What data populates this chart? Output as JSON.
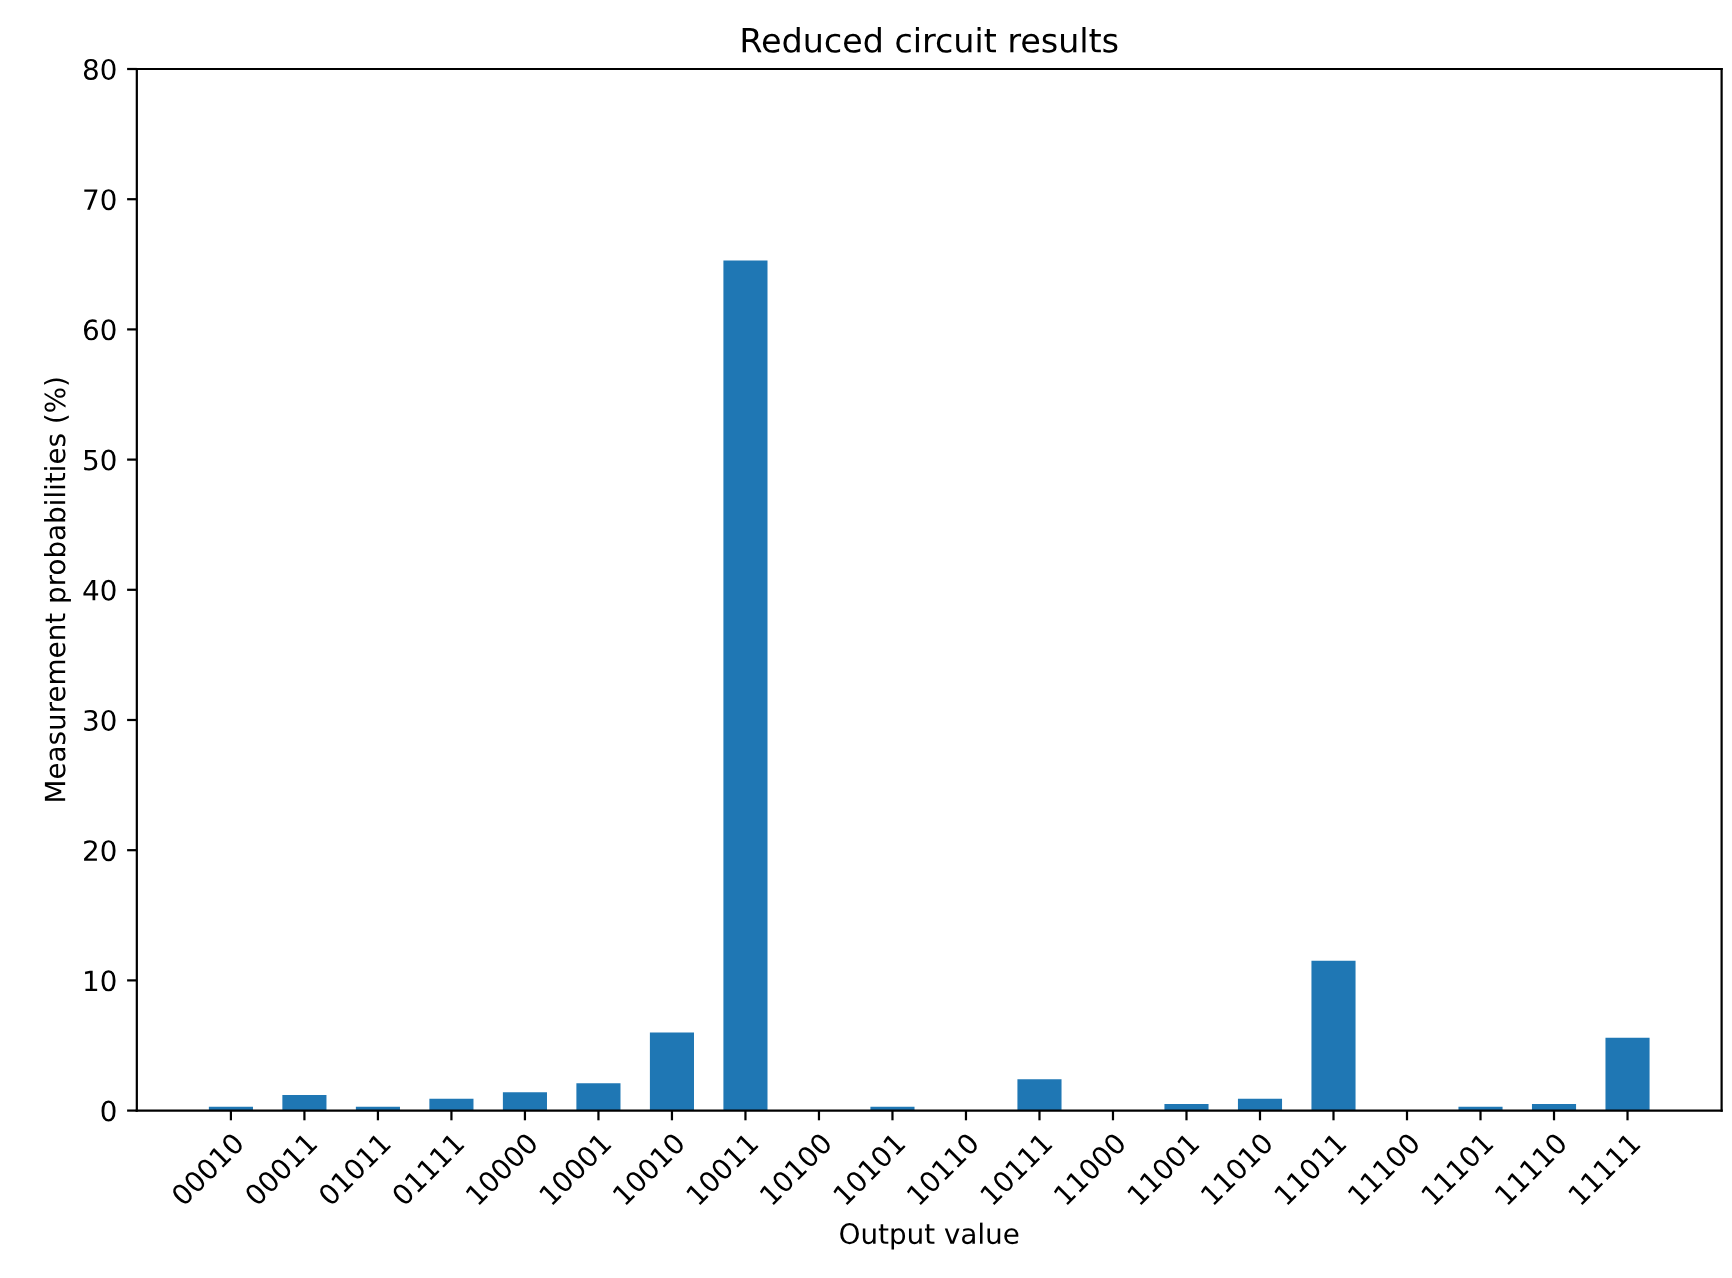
{
  "chart_data": {
    "type": "bar",
    "title": "Reduced circuit results",
    "xlabel": "Output value",
    "ylabel": "Measurement probabilities (%)",
    "categories": [
      "00010",
      "00011",
      "01011",
      "01111",
      "10000",
      "10001",
      "10010",
      "10011",
      "10100",
      "10101",
      "10110",
      "10111",
      "11000",
      "11001",
      "11010",
      "11011",
      "11100",
      "11101",
      "11110",
      "11111"
    ],
    "values": [
      0.3,
      1.2,
      0.3,
      0.9,
      1.4,
      2.1,
      6.0,
      65.3,
      0,
      0.3,
      0,
      2.4,
      0,
      0.5,
      0.9,
      11.5,
      0,
      0.3,
      0.5,
      5.6
    ],
    "color": "#1f77b4",
    "ylim": [
      0,
      80
    ],
    "yticks": [
      0,
      10,
      20,
      30,
      40,
      50,
      60,
      70,
      80
    ],
    "grid": false
  }
}
